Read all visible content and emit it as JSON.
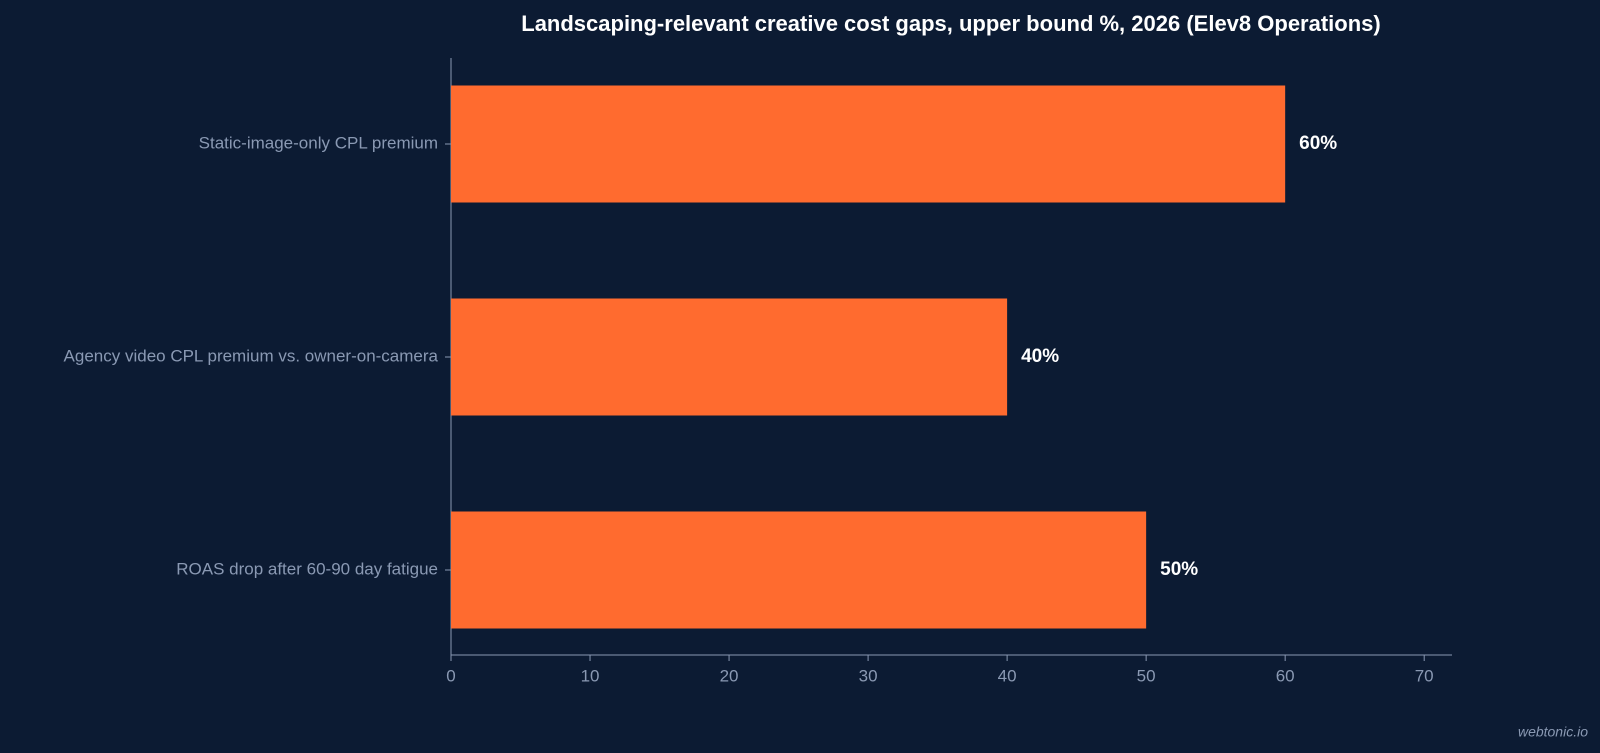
{
  "chart_data": {
    "type": "barh",
    "title": "Landscaping-relevant creative cost gaps, upper bound %, 2026 (Elev8 Operations)",
    "categories": [
      "Static-image-only CPL premium",
      "Agency video CPL premium vs. owner-on-camera",
      "ROAS drop after 60-90 day fatigue"
    ],
    "values": [
      60,
      40,
      50
    ],
    "value_labels": [
      "60%",
      "40%",
      "50%"
    ],
    "color": "#ff6b2f",
    "xlim": [
      0,
      72
    ],
    "xticks": [
      0,
      10,
      20,
      30,
      40,
      50,
      60,
      70
    ],
    "grid": false,
    "watermark": "webtonic.io"
  }
}
